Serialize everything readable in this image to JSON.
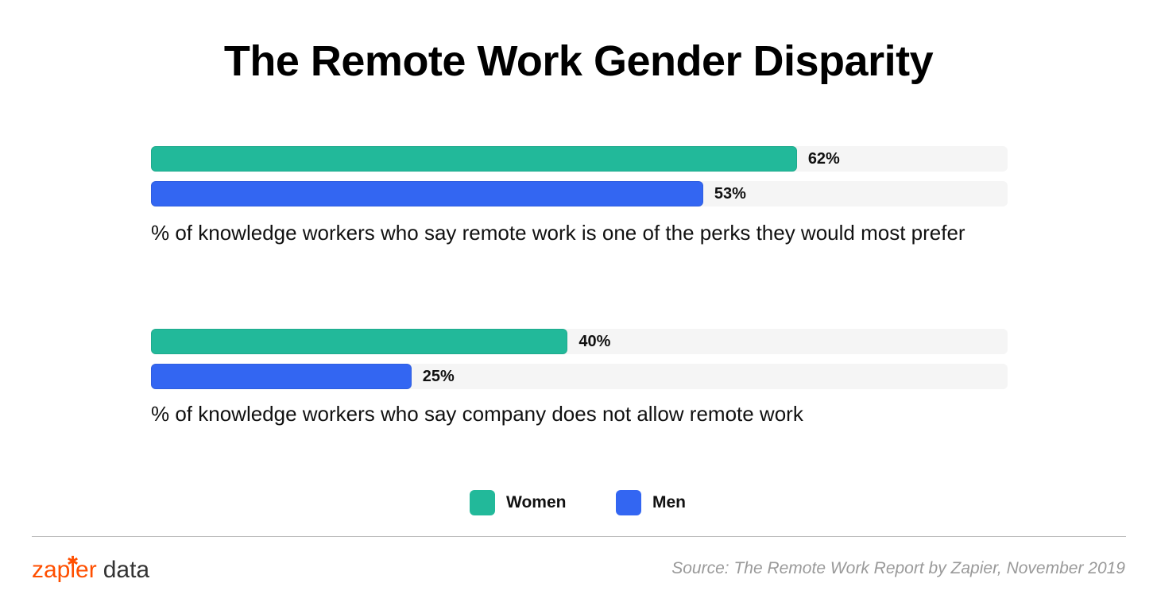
{
  "title": "The Remote Work Gender Disparity",
  "colors": {
    "women": "#22b99a",
    "men": "#3366f2",
    "track": "#f5f5f5",
    "brand": "#ff4f00"
  },
  "chart_data": {
    "type": "bar",
    "orientation": "horizontal",
    "xlim": [
      0,
      100
    ],
    "groups": [
      {
        "caption": "% of knowledge workers who say remote work is one of the perks they would most prefer",
        "bars": [
          {
            "series": "Women",
            "value": 62,
            "label": "62%"
          },
          {
            "series": "Men",
            "value": 53,
            "label": "53%"
          }
        ]
      },
      {
        "caption": "% of knowledge workers who say company does not allow remote work",
        "bars": [
          {
            "series": "Women",
            "value": 40,
            "label": "40%"
          },
          {
            "series": "Men",
            "value": 25,
            "label": "25%"
          }
        ]
      }
    ],
    "legend": [
      {
        "label": "Women",
        "color": "#22b99a"
      },
      {
        "label": "Men",
        "color": "#3366f2"
      }
    ],
    "legend_position": "bottom-center"
  },
  "footer": {
    "brand_name": "zapier",
    "brand_suffix": "data",
    "brand_mark": "✱",
    "source": "Source: The Remote Work Report by Zapier, November 2019"
  }
}
